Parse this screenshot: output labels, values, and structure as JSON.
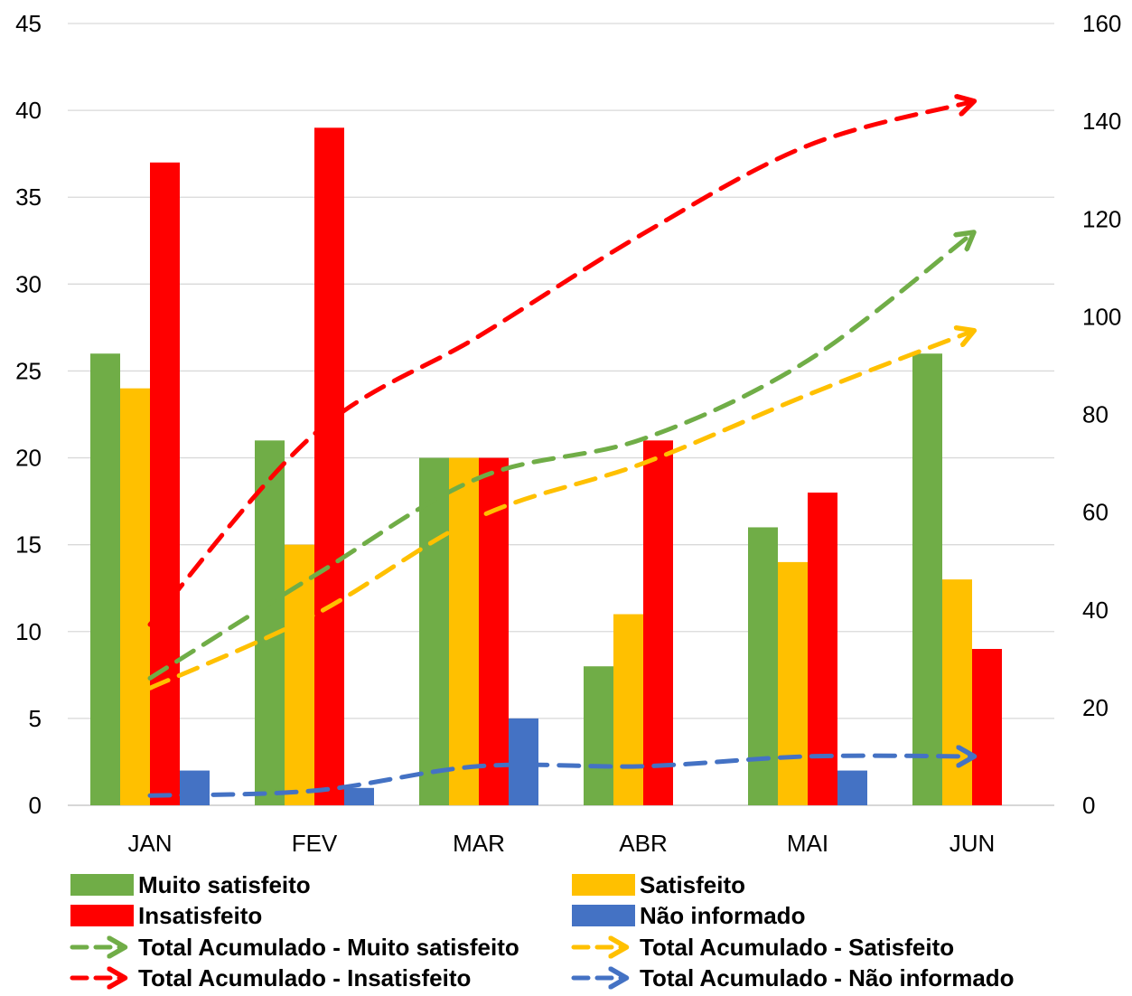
{
  "chart_data": {
    "type": "bar",
    "categories": [
      "JAN",
      "FEV",
      "MAR",
      "ABR",
      "MAI",
      "JUN"
    ],
    "y_left": {
      "ylim": [
        0,
        45
      ],
      "ticks": [
        "0",
        "5",
        "10",
        "15",
        "20",
        "25",
        "30",
        "35",
        "40",
        "45"
      ]
    },
    "y_right": {
      "ylim": [
        0,
        160
      ],
      "ticks": [
        "0",
        "20",
        "40",
        "60",
        "80",
        "100",
        "120",
        "140",
        "160"
      ]
    },
    "grid": true,
    "legend_position": "bottom",
    "series": [
      {
        "name": "Muito satisfeito",
        "kind": "bar",
        "axis": "left",
        "color": "#70AD47",
        "values": [
          26,
          21,
          20,
          8,
          16,
          26
        ]
      },
      {
        "name": "Satisfeito",
        "kind": "bar",
        "axis": "left",
        "color": "#FFC000",
        "values": [
          24,
          15,
          20,
          11,
          14,
          13
        ]
      },
      {
        "name": "Insatisfeito",
        "kind": "bar",
        "axis": "left",
        "color": "#FF0000",
        "values": [
          37,
          39,
          20,
          21,
          18,
          9
        ]
      },
      {
        "name": "Não informado",
        "kind": "bar",
        "axis": "left",
        "color": "#4472C4",
        "values": [
          2,
          1,
          5,
          0,
          2,
          0
        ]
      },
      {
        "name": "Total Acumulado - Muito satisfeito",
        "kind": "line",
        "style": "dashed-arrow",
        "axis": "right",
        "color": "#70AD47",
        "values": [
          26,
          47,
          67,
          75,
          91,
          117
        ]
      },
      {
        "name": "Total Acumulado - Satisfeito",
        "kind": "line",
        "style": "dashed-arrow",
        "axis": "right",
        "color": "#FFC000",
        "values": [
          24,
          39,
          59,
          70,
          84,
          97
        ]
      },
      {
        "name": "Total Acumulado - Insatisfeito",
        "kind": "line",
        "style": "dashed-arrow",
        "axis": "right",
        "color": "#FF0000",
        "values": [
          37,
          76,
          96,
          117,
          135,
          144
        ]
      },
      {
        "name": "Total Acumulado - Não informado",
        "kind": "line",
        "style": "dashed-arrow",
        "axis": "right",
        "color": "#4472C4",
        "values": [
          2,
          3,
          8,
          8,
          10,
          10
        ]
      }
    ]
  }
}
